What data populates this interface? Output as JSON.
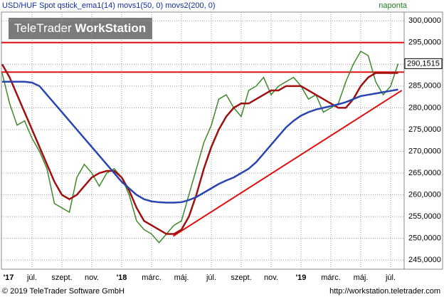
{
  "chart_data": {
    "type": "line",
    "title": "USD/HUF Spot qstick_ema1(14) movs1(50, 0) movs2(200, 0)",
    "period": "naponta",
    "logo": {
      "brand": "TeleTrader",
      "product": "WorkStation"
    },
    "footer_left": "© 2019 TeleTrader Software GmbH",
    "footer_right": "http://workstation.teletrader.com",
    "last_price_label": "290,1515",
    "categories": [
      "'17",
      null,
      null,
      null,
      "júl.",
      null,
      null,
      null,
      "szept.",
      null,
      null,
      null,
      "nov.",
      null,
      null,
      null,
      "'18",
      null,
      null,
      null,
      "márc.",
      null,
      null,
      null,
      "máj.",
      null,
      null,
      null,
      "júl.",
      null,
      null,
      null,
      "szept.",
      null,
      null,
      null,
      "nov.",
      null,
      null,
      null,
      "'19",
      null,
      null,
      null,
      "márc.",
      null,
      null,
      null,
      "máj.",
      null,
      null,
      null,
      "júl.",
      null
    ],
    "series": [
      {
        "color": "#3c8a2a",
        "values": [
          288,
          281,
          276,
          277,
          273,
          270,
          266,
          258,
          257,
          256,
          264,
          267,
          265,
          262,
          265,
          266,
          264,
          260,
          254,
          252,
          251,
          249,
          251,
          253,
          254,
          260,
          266,
          272,
          276,
          282,
          283,
          280,
          278,
          284,
          285,
          287,
          283,
          285,
          286,
          287,
          285,
          282,
          283,
          279,
          280,
          281,
          286,
          290,
          293,
          292,
          286,
          283,
          285,
          290.1515
        ]
      },
      {
        "color": "#a01010",
        "values": [
          290,
          287,
          283,
          279,
          275,
          271,
          267,
          263,
          260,
          259,
          260,
          262,
          264,
          265,
          265.5,
          265.5,
          264,
          261,
          257,
          254,
          253,
          252,
          251,
          251,
          252,
          255,
          260,
          266,
          271,
          275,
          278,
          280,
          281,
          281,
          282,
          283,
          284,
          284,
          285,
          285,
          285,
          284,
          283,
          282,
          281,
          280,
          280,
          282,
          285,
          287,
          288,
          288,
          288,
          288
        ]
      },
      {
        "color": "#2a45b0",
        "values": [
          286,
          286,
          286,
          286,
          285.8,
          285,
          283,
          281,
          279,
          277,
          275,
          273,
          271,
          269,
          267,
          265,
          263,
          261.5,
          260,
          259,
          258.5,
          258.3,
          258.2,
          258.2,
          258.3,
          258.8,
          259.5,
          260.5,
          261.5,
          262.5,
          263.3,
          264,
          265,
          266,
          267.5,
          269.5,
          271.5,
          273.5,
          275.5,
          277,
          278.2,
          279,
          279.6,
          280,
          280.4,
          280.8,
          281.3,
          282,
          282.7,
          283,
          283.3,
          283.6,
          283.9,
          284.2
        ]
      }
    ],
    "hlines": {
      "color": "#e01010",
      "values": [
        295,
        288.2
      ]
    },
    "trendline": {
      "color": "#e01010",
      "values": [
        250.5,
        284
      ]
    },
    "ylim": [
      242.9,
      302
    ],
    "yticks": [
      {
        "value": 245,
        "label": "245,0000"
      },
      {
        "value": 250,
        "label": "250,0000"
      },
      {
        "value": 255,
        "label": "255,0000"
      },
      {
        "value": 260,
        "label": "260,0000"
      },
      {
        "value": 265,
        "label": "265,0000"
      },
      {
        "value": 270,
        "label": "270,0000"
      },
      {
        "value": 275,
        "label": "275,0000"
      },
      {
        "value": 280,
        "label": "280,0000"
      },
      {
        "value": 285,
        "label": "285,0000"
      },
      {
        "value": 290,
        "label": "290,0000"
      },
      {
        "value": 295,
        "label": "295,0000"
      },
      {
        "value": 300,
        "label": "300,0000"
      }
    ],
    "grid": true
  }
}
